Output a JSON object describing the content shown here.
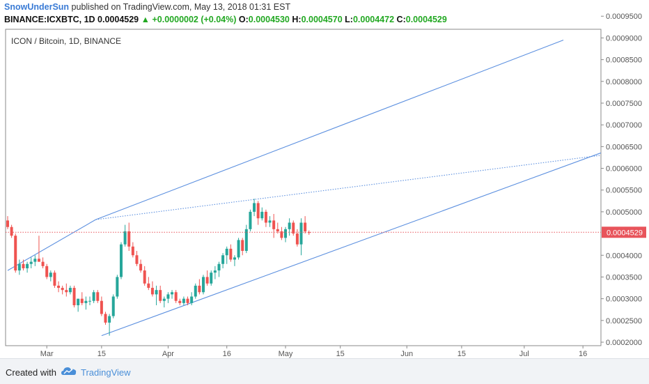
{
  "header": {
    "author": "SnowUnderSun",
    "published_text": "published on TradingView.com, May 13, 2018 01:31 EST",
    "symbol_line": "BINANCE:ICXBTC, 1D",
    "last": "0.0004529",
    "change": "+0.0000002 (+0.04%)",
    "o_label": "O:",
    "o_value": "0.0004530",
    "h_label": "H:",
    "h_value": "0.0004570",
    "l_label": "L:",
    "l_value": "0.0004472",
    "c_label": "C:",
    "c_value": "0.0004529"
  },
  "footer": {
    "created_with": "Created with",
    "brand": "TradingView"
  },
  "colors": {
    "up": "#26a69a",
    "down": "#ef5350",
    "trendline": "#5b8fdf",
    "price_line": "#e8545b",
    "axis": "#555555"
  },
  "chart_data": {
    "type": "candlestick",
    "title": "ICON / Bitcoin, 1D, BINANCE",
    "last_price": 0.0004529,
    "last_price_label": "0.0004529",
    "y_axis": {
      "range": [
        0.0002,
        0.00096
      ],
      "ticks": [
        {
          "v": 0.0002,
          "label": "0.0002000"
        },
        {
          "v": 0.00025,
          "label": "0.0002500"
        },
        {
          "v": 0.0003,
          "label": "0.0003000"
        },
        {
          "v": 0.00035,
          "label": "0.0003500"
        },
        {
          "v": 0.0004,
          "label": "0.0004000"
        },
        {
          "v": 0.00045,
          "label": "0.0004500"
        },
        {
          "v": 0.0005,
          "label": "0.0005000"
        },
        {
          "v": 0.00055,
          "label": "0.0005500"
        },
        {
          "v": 0.0006,
          "label": "0.0006000"
        },
        {
          "v": 0.00065,
          "label": "0.0006500"
        },
        {
          "v": 0.0007,
          "label": "0.0007000"
        },
        {
          "v": 0.00075,
          "label": "0.0007500"
        },
        {
          "v": 0.0008,
          "label": "0.0008000"
        },
        {
          "v": 0.00085,
          "label": "0.0008500"
        },
        {
          "v": 0.0009,
          "label": "0.0009000"
        },
        {
          "v": 0.00095,
          "label": "0.0009500"
        }
      ]
    },
    "x_axis": {
      "start_date": "2018-02-19",
      "days_shown": 126,
      "ticks": [
        {
          "day": 10,
          "label": "Mar"
        },
        {
          "day": 24,
          "label": "15"
        },
        {
          "day": 41,
          "label": "Apr"
        },
        {
          "day": 56,
          "label": "16"
        },
        {
          "day": 71,
          "label": "May"
        },
        {
          "day": 85,
          "label": "15"
        },
        {
          "day": 102,
          "label": "Jun"
        },
        {
          "day": 116,
          "label": "15"
        },
        {
          "day": 132,
          "label": "Jul"
        },
        {
          "day": 147,
          "label": "16"
        }
      ]
    },
    "candles": [
      [
        0.00048,
        0.00049,
        0.00046,
        0.000465
      ],
      [
        0.000465,
        0.00047,
        0.00044,
        0.000445
      ],
      [
        0.000445,
        0.00045,
        0.00036,
        0.000365
      ],
      [
        0.000365,
        0.00039,
        0.000355,
        0.00038
      ],
      [
        0.00038,
        0.00039,
        0.000365,
        0.00037
      ],
      [
        0.00037,
        0.000385,
        0.00036,
        0.00038
      ],
      [
        0.00038,
        0.000395,
        0.00037,
        0.000385
      ],
      [
        0.000385,
        0.0004,
        0.000375,
        0.000392
      ],
      [
        0.000392,
        0.000445,
        0.000385,
        0.000385
      ],
      [
        0.000385,
        0.000395,
        0.00037,
        0.000375
      ],
      [
        0.000375,
        0.00038,
        0.000345,
        0.00035
      ],
      [
        0.00035,
        0.000365,
        0.00034,
        0.00036
      ],
      [
        0.00036,
        0.000365,
        0.000325,
        0.00033
      ],
      [
        0.00033,
        0.00034,
        0.000315,
        0.000325
      ],
      [
        0.000325,
        0.00033,
        0.00031,
        0.00032
      ],
      [
        0.00032,
        0.000335,
        0.000305,
        0.000315
      ],
      [
        0.000315,
        0.00033,
        0.00031,
        0.000325
      ],
      [
        0.000325,
        0.00033,
        0.00028,
        0.000285
      ],
      [
        0.000285,
        0.0003,
        0.00027,
        0.0003
      ],
      [
        0.0003,
        0.000315,
        0.000285,
        0.00029
      ],
      [
        0.00029,
        0.000305,
        0.000275,
        0.000295
      ],
      [
        0.000295,
        0.000305,
        0.000285,
        0.000295
      ],
      [
        0.000295,
        0.00032,
        0.00029,
        0.000315
      ],
      [
        0.000315,
        0.00032,
        0.00029,
        0.000295
      ],
      [
        0.000295,
        0.000305,
        0.00026,
        0.000265
      ],
      [
        0.000265,
        0.00027,
        0.00024,
        0.000245
      ],
      [
        0.000245,
        0.000265,
        0.000215,
        0.00026
      ],
      [
        0.00026,
        0.00031,
        0.000255,
        0.000305
      ],
      [
        0.000305,
        0.000355,
        0.0003,
        0.00035
      ],
      [
        0.00035,
        0.00043,
        0.000345,
        0.000425
      ],
      [
        0.000425,
        0.00047,
        0.00042,
        0.000455
      ],
      [
        0.000455,
        0.000475,
        0.00041,
        0.00042
      ],
      [
        0.00042,
        0.00043,
        0.000395,
        0.0004
      ],
      [
        0.0004,
        0.00041,
        0.000375,
        0.00038
      ],
      [
        0.00038,
        0.00039,
        0.00036,
        0.000365
      ],
      [
        0.000365,
        0.000375,
        0.00033,
        0.000335
      ],
      [
        0.000335,
        0.00035,
        0.00032,
        0.000325
      ],
      [
        0.000325,
        0.00034,
        0.000305,
        0.00031
      ],
      [
        0.00031,
        0.00033,
        0.000285,
        0.00032
      ],
      [
        0.00032,
        0.00033,
        0.00029,
        0.000295
      ],
      [
        0.000295,
        0.000305,
        0.00028,
        0.0003
      ],
      [
        0.0003,
        0.000315,
        0.00029,
        0.00031
      ],
      [
        0.00031,
        0.00032,
        0.0003,
        0.000315
      ],
      [
        0.000315,
        0.00032,
        0.00029,
        0.000295
      ],
      [
        0.000295,
        0.0003,
        0.000285,
        0.00029
      ],
      [
        0.00029,
        0.000305,
        0.000285,
        0.0003
      ],
      [
        0.0003,
        0.000305,
        0.000285,
        0.00029
      ],
      [
        0.00029,
        0.000315,
        0.000285,
        0.000305
      ],
      [
        0.000305,
        0.000335,
        0.0003,
        0.00033
      ],
      [
        0.00033,
        0.000345,
        0.00031,
        0.000315
      ],
      [
        0.000315,
        0.000355,
        0.00031,
        0.00035
      ],
      [
        0.00035,
        0.000365,
        0.00033,
        0.000335
      ],
      [
        0.000335,
        0.000365,
        0.00033,
        0.00036
      ],
      [
        0.00036,
        0.000375,
        0.000345,
        0.000365
      ],
      [
        0.000365,
        0.000385,
        0.00035,
        0.00038
      ],
      [
        0.00038,
        0.000405,
        0.00037,
        0.0004
      ],
      [
        0.0004,
        0.00042,
        0.00038,
        0.000415
      ],
      [
        0.000415,
        0.000425,
        0.000385,
        0.00039
      ],
      [
        0.00039,
        0.0004,
        0.000375,
        0.000395
      ],
      [
        0.000395,
        0.00044,
        0.00039,
        0.000435
      ],
      [
        0.000435,
        0.00044,
        0.0004,
        0.00041
      ],
      [
        0.00041,
        0.00047,
        0.000405,
        0.00046
      ],
      [
        0.00046,
        0.000505,
        0.000455,
        0.0005
      ],
      [
        0.0005,
        0.00053,
        0.00049,
        0.00052
      ],
      [
        0.00052,
        0.000525,
        0.00047,
        0.000485
      ],
      [
        0.000485,
        0.00051,
        0.00048,
        0.0005
      ],
      [
        0.0005,
        0.000505,
        0.000465,
        0.000475
      ],
      [
        0.000475,
        0.00049,
        0.000465,
        0.00048
      ],
      [
        0.00048,
        0.000495,
        0.00044,
        0.00046
      ],
      [
        0.00046,
        0.000475,
        0.00045,
        0.000455
      ],
      [
        0.000455,
        0.000465,
        0.000435,
        0.00044
      ],
      [
        0.00044,
        0.000465,
        0.00043,
        0.00046
      ],
      [
        0.00046,
        0.000485,
        0.000445,
        0.000475
      ],
      [
        0.000475,
        0.00048,
        0.000445,
        0.00045
      ],
      [
        0.00045,
        0.00046,
        0.00042,
        0.000425
      ],
      [
        0.000425,
        0.000485,
        0.0004,
        0.000475
      ],
      [
        0.000475,
        0.00049,
        0.00045,
        0.000455
      ],
      [
        0.000453,
        0.000457,
        0.000447,
        0.0004529
      ]
    ],
    "trendlines": [
      {
        "style": "solid",
        "from": {
          "day": 0,
          "price": 0.000365
        },
        "to": {
          "day": 22.5,
          "price": 0.000482
        }
      },
      {
        "style": "solid",
        "from": {
          "day": 22.5,
          "price": 0.000482
        },
        "to": {
          "day": 142,
          "price": 0.000895
        }
      },
      {
        "style": "solid",
        "from": {
          "day": 24,
          "price": 0.000215
        },
        "to": {
          "day": 156,
          "price": 0.00065
        }
      },
      {
        "style": "dotted",
        "from": {
          "day": 22.5,
          "price": 0.000482
        },
        "to": {
          "day": 156,
          "price": 0.000635
        }
      }
    ]
  }
}
